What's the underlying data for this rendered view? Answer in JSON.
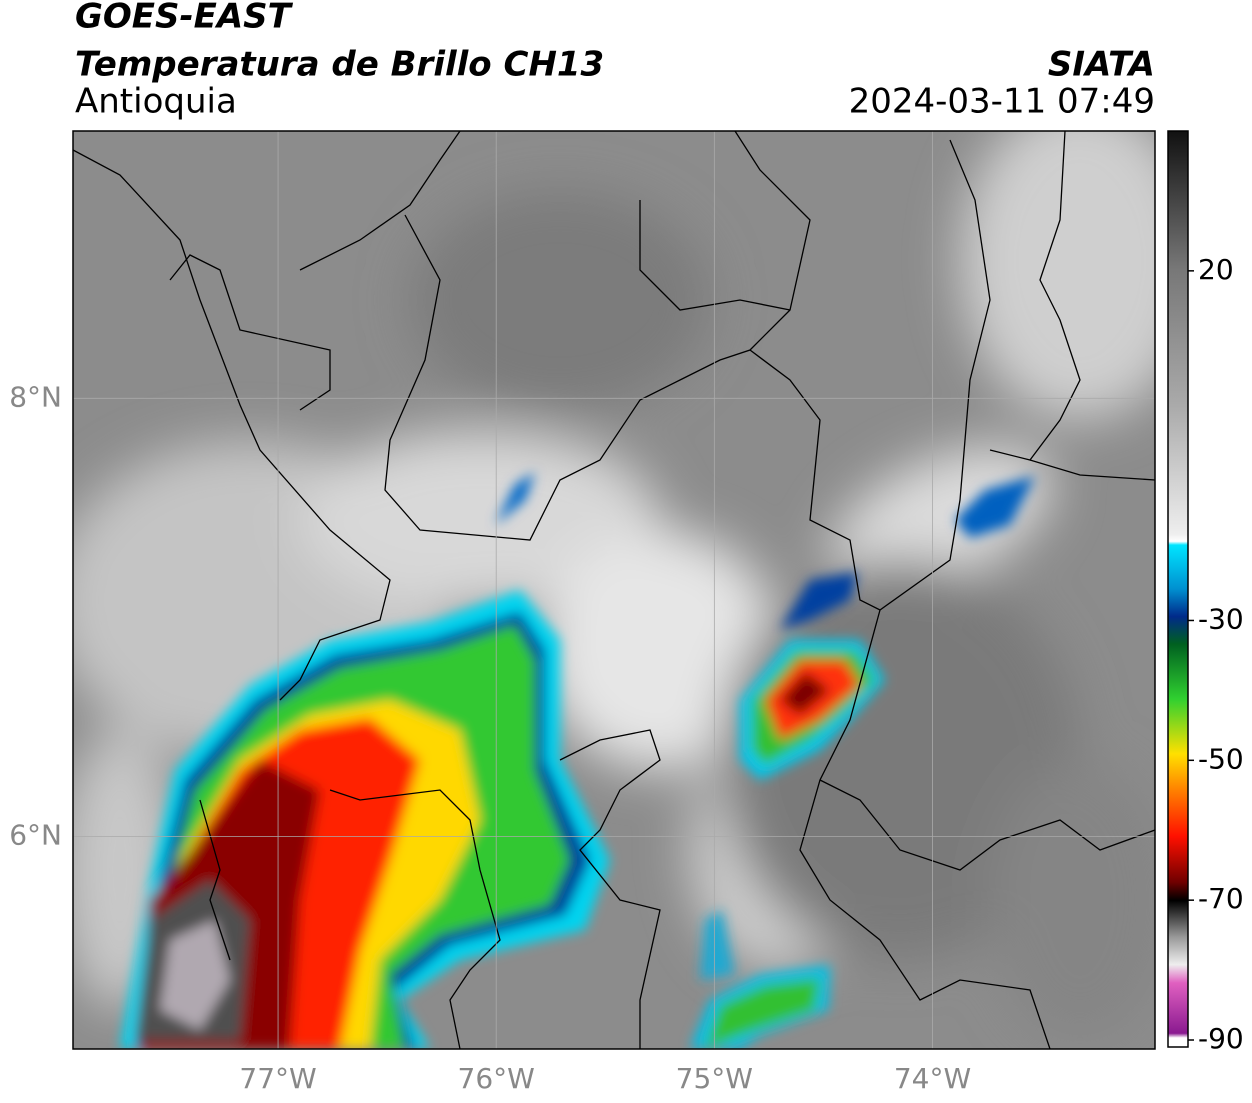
{
  "header": {
    "title": "GOES-EAST",
    "subtitle": "Temperatura de Brillo CH13",
    "region": "Antioquia",
    "source": "SIATA",
    "datetime": "2024-03-11 07:49"
  },
  "map": {
    "xlim": [
      -77.94,
      -72.98
    ],
    "ylim": [
      5.03,
      9.22
    ],
    "xticks": [
      {
        "value": -77,
        "label": "77°W"
      },
      {
        "value": -76,
        "label": "76°W"
      },
      {
        "value": -75,
        "label": "75°W"
      },
      {
        "value": -74,
        "label": "74°W"
      }
    ],
    "yticks": [
      {
        "value": 8,
        "label": "8°N"
      },
      {
        "value": 6,
        "label": "6°N"
      }
    ],
    "grid": true
  },
  "colorbar": {
    "lim": [
      -91,
      40
    ],
    "ticks": [
      20,
      -30,
      -50,
      -70,
      -90
    ]
  }
}
